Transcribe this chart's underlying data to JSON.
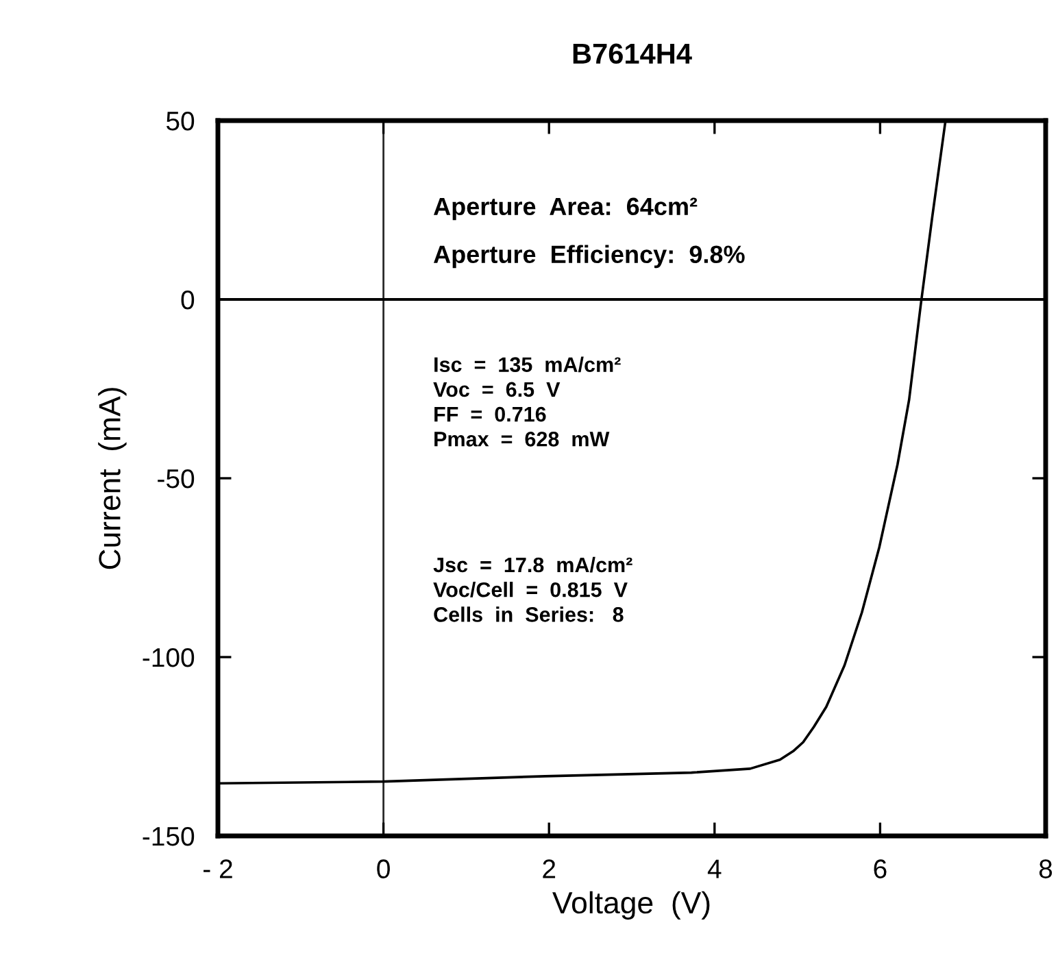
{
  "chart_data": {
    "type": "line",
    "title": "B7614H4",
    "xlabel": "Voltage  (V)",
    "ylabel": "Current  (mA)",
    "x": [
      -1.99,
      0,
      1.95,
      3.72,
      4.43,
      4.79,
      4.95,
      5.07,
      5.2,
      5.35,
      5.57,
      5.78,
      5.99,
      6.21,
      6.35,
      6.49,
      6.63,
      6.79
    ],
    "series": [
      {
        "color": "#000000",
        "values": [
          -135.3,
          -134.8,
          -133.3,
          -132.3,
          -131.2,
          -128.7,
          -126.3,
          -123.8,
          -119.5,
          -113.9,
          -102.3,
          -87.5,
          -69.3,
          -46.2,
          -28.1,
          -1.7,
          23.1,
          50
        ]
      }
    ],
    "xlim": [
      -2,
      8
    ],
    "ylim": [
      -150,
      50
    ],
    "xticks": [
      {
        "value": -2,
        "label": "- 2"
      },
      0,
      2,
      4,
      6,
      8
    ],
    "yticks": [
      {
        "value": -150,
        "label": "-150"
      },
      {
        "value": -100,
        "label": "-100"
      },
      {
        "value": -50,
        "label": "-50"
      },
      0,
      50
    ],
    "ref_lines": [
      {
        "axis": "x",
        "value": 0,
        "color": "#2a2a2a"
      },
      {
        "axis": "y",
        "value": 0,
        "color": "#000000"
      }
    ],
    "annotations": [
      "Aperture  Area:  64cm²",
      "Aperture  Efficiency:  9.8%",
      "Isc  =  135  mA/cm²\nVoc  =  6.5  V\nFF  =  0.716\nPmax  =  628  mW",
      "Jsc  =  17.8  mA/cm²\nVoc/Cell  =  0.815  V\nCells  in  Series:   8"
    ],
    "grid": false,
    "legend": false,
    "marker": "none",
    "line_style": "solid"
  }
}
